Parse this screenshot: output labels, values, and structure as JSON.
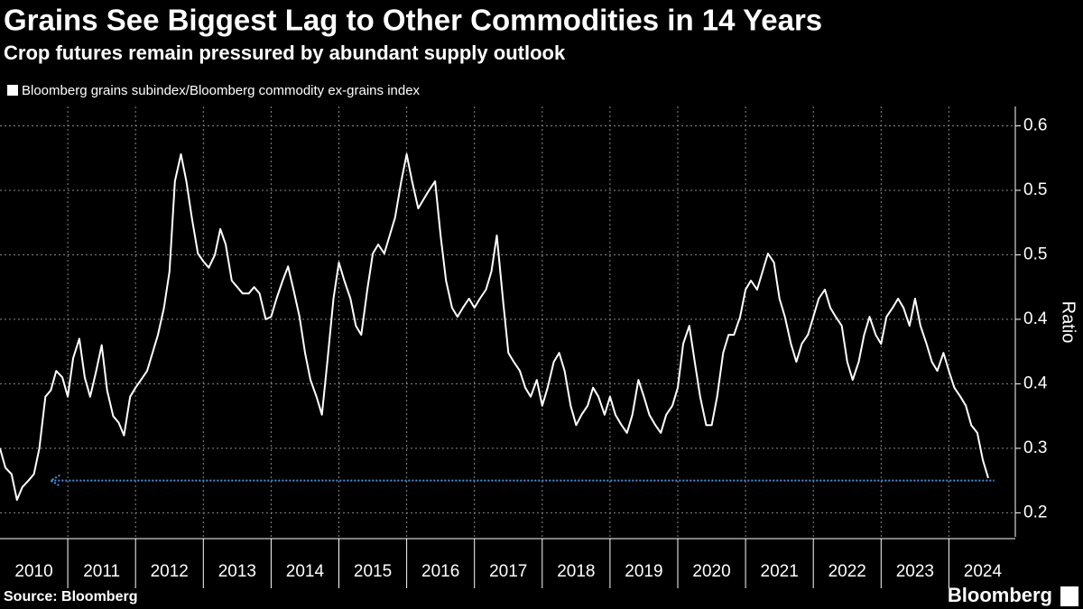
{
  "chart_data": {
    "type": "line",
    "title": "Grains See Biggest Lag to Other Commodities in 14 Years",
    "subtitle": "Crop futures remain pressured by abundant supply outlook",
    "y_label": "Ratio",
    "source": "Source: Bloomberg",
    "brand": "Bloomberg",
    "grid": true,
    "year_labels": [
      "2010",
      "2011",
      "2012",
      "2013",
      "2014",
      "2015",
      "2016",
      "2017",
      "2018",
      "2019",
      "2020",
      "2021",
      "2022",
      "2023",
      "2024"
    ],
    "xlim": [
      2010,
      2024.98
    ],
    "xticks": [
      2011,
      2012,
      2013,
      2014,
      2015,
      2016,
      2017,
      2018,
      2019,
      2020,
      2021,
      2022,
      2023,
      2024
    ],
    "ylim": [
      0.23,
      0.565
    ],
    "yticks": [
      {
        "value": 0.55,
        "label": "0.6"
      },
      {
        "value": 0.5,
        "label": "0.5"
      },
      {
        "value": 0.45,
        "label": "0.5"
      },
      {
        "value": 0.4,
        "label": "0.4"
      },
      {
        "value": 0.35,
        "label": "0.4"
      },
      {
        "value": 0.3,
        "label": "0.3"
      },
      {
        "value": 0.25,
        "label": "0.2"
      }
    ],
    "reference_line": {
      "value": 0.275,
      "from": 2010.75,
      "to": 2024.67,
      "color": "#4a90e2"
    },
    "series": [
      {
        "name": "Bloomberg grains subindex/Bloomberg commodity ex-grains index",
        "color": "#ffffff",
        "x": [
          2010,
          2010.08,
          2010.17,
          2010.25,
          2010.33,
          2010.42,
          2010.5,
          2010.58,
          2010.67,
          2010.75,
          2010.83,
          2010.92,
          2011,
          2011.08,
          2011.17,
          2011.25,
          2011.33,
          2011.42,
          2011.5,
          2011.58,
          2011.67,
          2011.75,
          2011.83,
          2011.92,
          2012,
          2012.08,
          2012.17,
          2012.25,
          2012.33,
          2012.42,
          2012.5,
          2012.58,
          2012.67,
          2012.75,
          2012.83,
          2012.92,
          2013,
          2013.08,
          2013.17,
          2013.25,
          2013.33,
          2013.42,
          2013.5,
          2013.58,
          2013.67,
          2013.75,
          2013.83,
          2013.92,
          2014,
          2014.08,
          2014.17,
          2014.25,
          2014.33,
          2014.42,
          2014.5,
          2014.58,
          2014.67,
          2014.75,
          2014.83,
          2014.92,
          2015,
          2015.08,
          2015.17,
          2015.25,
          2015.33,
          2015.42,
          2015.5,
          2015.58,
          2015.67,
          2015.75,
          2015.83,
          2015.92,
          2016,
          2016.08,
          2016.17,
          2016.25,
          2016.33,
          2016.42,
          2016.5,
          2016.58,
          2016.67,
          2016.75,
          2016.83,
          2016.92,
          2017,
          2017.08,
          2017.17,
          2017.25,
          2017.33,
          2017.42,
          2017.5,
          2017.58,
          2017.67,
          2017.75,
          2017.83,
          2017.92,
          2018,
          2018.08,
          2018.17,
          2018.25,
          2018.33,
          2018.42,
          2018.5,
          2018.58,
          2018.67,
          2018.75,
          2018.83,
          2018.92,
          2019,
          2019.08,
          2019.17,
          2019.25,
          2019.33,
          2019.42,
          2019.5,
          2019.58,
          2019.67,
          2019.75,
          2019.83,
          2019.92,
          2020,
          2020.08,
          2020.17,
          2020.25,
          2020.33,
          2020.42,
          2020.5,
          2020.58,
          2020.67,
          2020.75,
          2020.83,
          2020.92,
          2021,
          2021.08,
          2021.17,
          2021.25,
          2021.33,
          2021.42,
          2021.5,
          2021.58,
          2021.67,
          2021.75,
          2021.83,
          2021.92,
          2022,
          2022.08,
          2022.17,
          2022.25,
          2022.33,
          2022.42,
          2022.5,
          2022.58,
          2022.67,
          2022.75,
          2022.83,
          2022.92,
          2023,
          2023.08,
          2023.17,
          2023.25,
          2023.33,
          2023.42,
          2023.5,
          2023.58,
          2023.67,
          2023.75,
          2023.83,
          2023.92,
          2024,
          2024.08,
          2024.17,
          2024.25,
          2024.33,
          2024.42,
          2024.5,
          2024.58
        ],
        "values": [
          0.3,
          0.285,
          0.28,
          0.26,
          0.27,
          0.275,
          0.28,
          0.3,
          0.34,
          0.345,
          0.36,
          0.355,
          0.34,
          0.37,
          0.385,
          0.355,
          0.34,
          0.36,
          0.38,
          0.345,
          0.325,
          0.32,
          0.31,
          0.34,
          0.347,
          0.353,
          0.36,
          0.374,
          0.388,
          0.409,
          0.437,
          0.507,
          0.528,
          0.507,
          0.479,
          0.451,
          0.445,
          0.44,
          0.45,
          0.47,
          0.458,
          0.43,
          0.425,
          0.42,
          0.42,
          0.425,
          0.42,
          0.4,
          0.402,
          0.416,
          0.43,
          0.441,
          0.423,
          0.402,
          0.374,
          0.353,
          0.34,
          0.326,
          0.367,
          0.416,
          0.444,
          0.43,
          0.416,
          0.395,
          0.388,
          0.423,
          0.451,
          0.458,
          0.451,
          0.465,
          0.479,
          0.507,
          0.528,
          0.507,
          0.486,
          0.493,
          0.5,
          0.507,
          0.465,
          0.43,
          0.409,
          0.402,
          0.409,
          0.416,
          0.409,
          0.416,
          0.423,
          0.437,
          0.465,
          0.416,
          0.374,
          0.367,
          0.36,
          0.347,
          0.34,
          0.353,
          0.333,
          0.347,
          0.367,
          0.374,
          0.36,
          0.333,
          0.318,
          0.326,
          0.333,
          0.347,
          0.34,
          0.326,
          0.34,
          0.326,
          0.318,
          0.312,
          0.326,
          0.353,
          0.34,
          0.326,
          0.318,
          0.312,
          0.326,
          0.333,
          0.347,
          0.381,
          0.395,
          0.367,
          0.34,
          0.318,
          0.318,
          0.34,
          0.374,
          0.388,
          0.388,
          0.402,
          0.423,
          0.43,
          0.423,
          0.437,
          0.451,
          0.444,
          0.416,
          0.402,
          0.381,
          0.367,
          0.381,
          0.388,
          0.402,
          0.416,
          0.423,
          0.409,
          0.402,
          0.395,
          0.367,
          0.353,
          0.367,
          0.388,
          0.402,
          0.388,
          0.381,
          0.402,
          0.409,
          0.416,
          0.409,
          0.395,
          0.416,
          0.395,
          0.381,
          0.367,
          0.36,
          0.374,
          0.36,
          0.347,
          0.34,
          0.333,
          0.318,
          0.312,
          0.291,
          0.277
        ]
      }
    ]
  }
}
